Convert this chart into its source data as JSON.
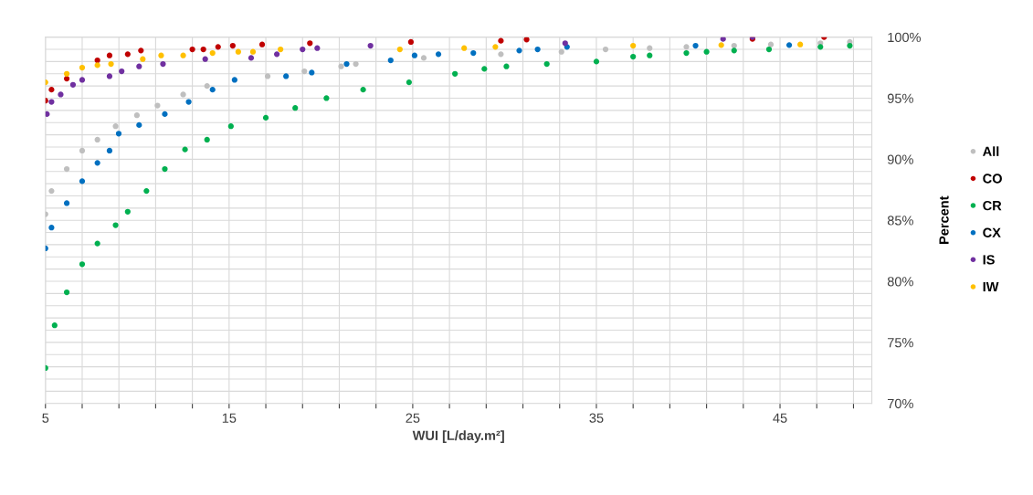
{
  "chart_data": {
    "type": "scatter",
    "xlabel": "WUI [L/day.m²]",
    "ylabel": "Percent",
    "marker": "circle",
    "grid": true,
    "legend": "right",
    "xlim": [
      5,
      50
    ],
    "xticks": [
      {
        "value": 5,
        "label": "5"
      },
      {
        "value": 7,
        "label": null
      },
      {
        "value": 9,
        "label": null
      },
      {
        "value": 11,
        "label": null
      },
      {
        "value": 13,
        "label": null
      },
      {
        "value": 15,
        "label": "15"
      },
      {
        "value": 17,
        "label": null
      },
      {
        "value": 19,
        "label": null
      },
      {
        "value": 21,
        "label": null
      },
      {
        "value": 23,
        "label": null
      },
      {
        "value": 25,
        "label": "25"
      },
      {
        "value": 27,
        "label": null
      },
      {
        "value": 29,
        "label": null
      },
      {
        "value": 31,
        "label": null
      },
      {
        "value": 33,
        "label": null
      },
      {
        "value": 35,
        "label": "35"
      },
      {
        "value": 37,
        "label": null
      },
      {
        "value": 39,
        "label": null
      },
      {
        "value": 41,
        "label": null
      },
      {
        "value": 43,
        "label": null
      },
      {
        "value": 45,
        "label": "45"
      },
      {
        "value": 47,
        "label": null
      },
      {
        "value": 49,
        "label": null
      }
    ],
    "ylim": [
      70,
      100
    ],
    "yticks": [
      {
        "value": 70,
        "label": "70%"
      },
      {
        "value": 71,
        "label": null
      },
      {
        "value": 72,
        "label": null
      },
      {
        "value": 73,
        "label": null
      },
      {
        "value": 74,
        "label": null
      },
      {
        "value": 75,
        "label": "75%"
      },
      {
        "value": 76,
        "label": null
      },
      {
        "value": 77,
        "label": null
      },
      {
        "value": 78,
        "label": null
      },
      {
        "value": 79,
        "label": null
      },
      {
        "value": 80,
        "label": "80%"
      },
      {
        "value": 81,
        "label": null
      },
      {
        "value": 82,
        "label": null
      },
      {
        "value": 83,
        "label": null
      },
      {
        "value": 84,
        "label": null
      },
      {
        "value": 85,
        "label": "85%"
      },
      {
        "value": 86,
        "label": null
      },
      {
        "value": 87,
        "label": null
      },
      {
        "value": 88,
        "label": null
      },
      {
        "value": 89,
        "label": null
      },
      {
        "value": 90,
        "label": "90%"
      },
      {
        "value": 91,
        "label": null
      },
      {
        "value": 92,
        "label": null
      },
      {
        "value": 93,
        "label": null
      },
      {
        "value": 94,
        "label": null
      },
      {
        "value": 95,
        "label": "95%"
      },
      {
        "value": 96,
        "label": null
      },
      {
        "value": 97,
        "label": null
      },
      {
        "value": 98,
        "label": null
      },
      {
        "value": 99,
        "label": null
      },
      {
        "value": 100,
        "label": "100%"
      }
    ],
    "series": [
      {
        "name": "All",
        "color": "#bfbfbf",
        "x": [
          5,
          5.33,
          6.16,
          7.0,
          7.83,
          8.82,
          9.98,
          11.1,
          12.5,
          13.8,
          15.3,
          17.1,
          19.1,
          21.1,
          21.9,
          25.6,
          29.8,
          33.1,
          35.5,
          37.9,
          39.9,
          42.5,
          44.5,
          47.2,
          48.8
        ],
        "values": [
          85.5,
          87.4,
          89.2,
          90.7,
          91.6,
          92.7,
          93.6,
          94.4,
          95.3,
          96.0,
          null,
          96.8,
          97.2,
          97.6,
          97.8,
          98.3,
          98.6,
          98.8,
          99.0,
          99.1,
          99.2,
          99.3,
          99.4,
          99.5,
          99.6
        ]
      },
      {
        "name": "CO",
        "color": "#c00000",
        "x": [
          5,
          5.33,
          6.16,
          7.0,
          7.83,
          8.49,
          9.48,
          10.2,
          13.0,
          13.6,
          14.4,
          15.2,
          16.8,
          19.4,
          24.9,
          29.8,
          31.2,
          43.5,
          47.4
        ],
        "values": [
          94.8,
          95.7,
          96.6,
          null,
          98.1,
          98.5,
          98.6,
          98.9,
          99.0,
          99.0,
          99.2,
          99.3,
          99.4,
          99.5,
          99.6,
          99.7,
          99.8,
          99.85,
          100
        ]
      },
      {
        "name": "CR",
        "color": "#00b050",
        "x": [
          5,
          5.5,
          6.16,
          7.0,
          7.83,
          8.82,
          9.48,
          10.5,
          11.5,
          12.6,
          13.8,
          15.1,
          17.0,
          18.6,
          20.3,
          22.3,
          24.8,
          27.3,
          28.9,
          30.1,
          32.3,
          35.0,
          37.0,
          37.9,
          39.9,
          41.0,
          42.5,
          44.4,
          47.2,
          48.8
        ],
        "values": [
          72.9,
          76.4,
          79.1,
          81.4,
          83.1,
          84.6,
          85.7,
          87.4,
          89.2,
          90.8,
          91.6,
          92.7,
          93.4,
          94.2,
          95.0,
          95.7,
          96.3,
          97.0,
          97.4,
          97.6,
          97.8,
          98.0,
          98.4,
          98.5,
          98.7,
          98.8,
          98.9,
          99.0,
          99.2,
          99.3
        ]
      },
      {
        "name": "CX",
        "color": "#0070c0",
        "x": [
          5,
          5.33,
          6.16,
          7.0,
          7.83,
          8.49,
          8.99,
          10.1,
          11.5,
          12.8,
          14.1,
          15.3,
          18.1,
          19.5,
          21.4,
          23.8,
          25.1,
          26.4,
          28.3,
          30.8,
          31.8,
          33.4,
          40.4,
          45.5
        ],
        "values": [
          82.7,
          84.4,
          86.4,
          88.2,
          89.7,
          90.7,
          92.1,
          92.8,
          93.7,
          94.7,
          95.7,
          96.5,
          96.8,
          97.1,
          97.8,
          98.1,
          98.5,
          98.6,
          98.7,
          98.9,
          99.0,
          99.2,
          99.3,
          99.35
        ]
      },
      {
        "name": "IS",
        "color": "#7030a0",
        "x": [
          5.08,
          5.33,
          5.83,
          6.5,
          7.0,
          8.49,
          9.15,
          10.1,
          11.4,
          13.7,
          16.2,
          17.6,
          19.0,
          19.8,
          22.7,
          33.3,
          41.9,
          43.5
        ],
        "values": [
          93.7,
          94.7,
          95.3,
          96.1,
          96.5,
          96.8,
          97.2,
          97.6,
          97.8,
          98.2,
          98.3,
          98.6,
          99.0,
          99.1,
          99.3,
          99.5,
          99.85,
          100
        ]
      },
      {
        "name": "IW",
        "color": "#ffc000",
        "x": [
          5,
          6.16,
          7.0,
          7.83,
          8.57,
          10.3,
          11.3,
          12.5,
          14.1,
          15.5,
          16.3,
          17.8,
          24.3,
          27.8,
          29.5,
          37.0,
          41.8,
          46.1
        ],
        "values": [
          96.3,
          97.0,
          97.5,
          97.7,
          97.8,
          98.2,
          98.5,
          98.5,
          98.7,
          98.8,
          98.8,
          99.0,
          99.0,
          99.1,
          99.2,
          99.3,
          99.35,
          99.4
        ]
      }
    ]
  }
}
